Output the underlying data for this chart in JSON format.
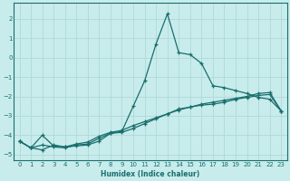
{
  "xlabel": "Humidex (Indice chaleur)",
  "ylabel": "",
  "xlim": [
    -0.5,
    23.5
  ],
  "ylim": [
    -5.3,
    2.8
  ],
  "yticks": [
    2,
    1,
    0,
    -1,
    -2,
    -3,
    -4,
    -5
  ],
  "xticks": [
    0,
    1,
    2,
    3,
    4,
    5,
    6,
    7,
    8,
    9,
    10,
    11,
    12,
    13,
    14,
    15,
    16,
    17,
    18,
    19,
    20,
    21,
    22,
    23
  ],
  "bg_color": "#c8ecec",
  "grid_color": "#b0d8d8",
  "line_color": "#1a6e6e",
  "series1": [
    [
      0,
      -4.3
    ],
    [
      1,
      -4.65
    ],
    [
      2,
      -4.75
    ],
    [
      3,
      -4.5
    ],
    [
      4,
      -4.6
    ],
    [
      5,
      -4.55
    ],
    [
      6,
      -4.5
    ],
    [
      7,
      -4.3
    ],
    [
      8,
      -3.9
    ],
    [
      9,
      -3.8
    ],
    [
      10,
      -2.5
    ],
    [
      11,
      -1.2
    ],
    [
      12,
      0.7
    ],
    [
      13,
      2.25
    ],
    [
      14,
      0.25
    ],
    [
      15,
      0.15
    ],
    [
      16,
      -0.3
    ],
    [
      17,
      -1.45
    ],
    [
      18,
      -1.55
    ],
    [
      19,
      -1.7
    ],
    [
      20,
      -1.85
    ],
    [
      21,
      -2.05
    ],
    [
      22,
      -2.15
    ],
    [
      23,
      -2.75
    ]
  ],
  "series2": [
    [
      0,
      -4.3
    ],
    [
      1,
      -4.65
    ],
    [
      2,
      -4.0
    ],
    [
      3,
      -4.55
    ],
    [
      4,
      -4.6
    ],
    [
      5,
      -4.45
    ],
    [
      6,
      -4.35
    ],
    [
      7,
      -4.05
    ],
    [
      8,
      -3.85
    ],
    [
      9,
      -3.75
    ],
    [
      10,
      -3.5
    ],
    [
      11,
      -3.3
    ],
    [
      12,
      -3.1
    ],
    [
      13,
      -2.9
    ],
    [
      14,
      -2.7
    ],
    [
      15,
      -2.55
    ],
    [
      16,
      -2.4
    ],
    [
      17,
      -2.3
    ],
    [
      18,
      -2.2
    ],
    [
      19,
      -2.1
    ],
    [
      20,
      -2.0
    ],
    [
      21,
      -1.85
    ],
    [
      22,
      -1.8
    ],
    [
      23,
      -2.75
    ]
  ],
  "series3": [
    [
      0,
      -4.3
    ],
    [
      1,
      -4.65
    ],
    [
      2,
      -4.5
    ],
    [
      3,
      -4.6
    ],
    [
      4,
      -4.65
    ],
    [
      5,
      -4.5
    ],
    [
      6,
      -4.45
    ],
    [
      7,
      -4.15
    ],
    [
      8,
      -3.9
    ],
    [
      9,
      -3.85
    ],
    [
      10,
      -3.65
    ],
    [
      11,
      -3.4
    ],
    [
      12,
      -3.15
    ],
    [
      13,
      -2.9
    ],
    [
      14,
      -2.65
    ],
    [
      15,
      -2.55
    ],
    [
      16,
      -2.45
    ],
    [
      17,
      -2.4
    ],
    [
      18,
      -2.3
    ],
    [
      19,
      -2.15
    ],
    [
      20,
      -2.05
    ],
    [
      21,
      -1.95
    ],
    [
      22,
      -1.9
    ],
    [
      23,
      -2.75
    ]
  ]
}
